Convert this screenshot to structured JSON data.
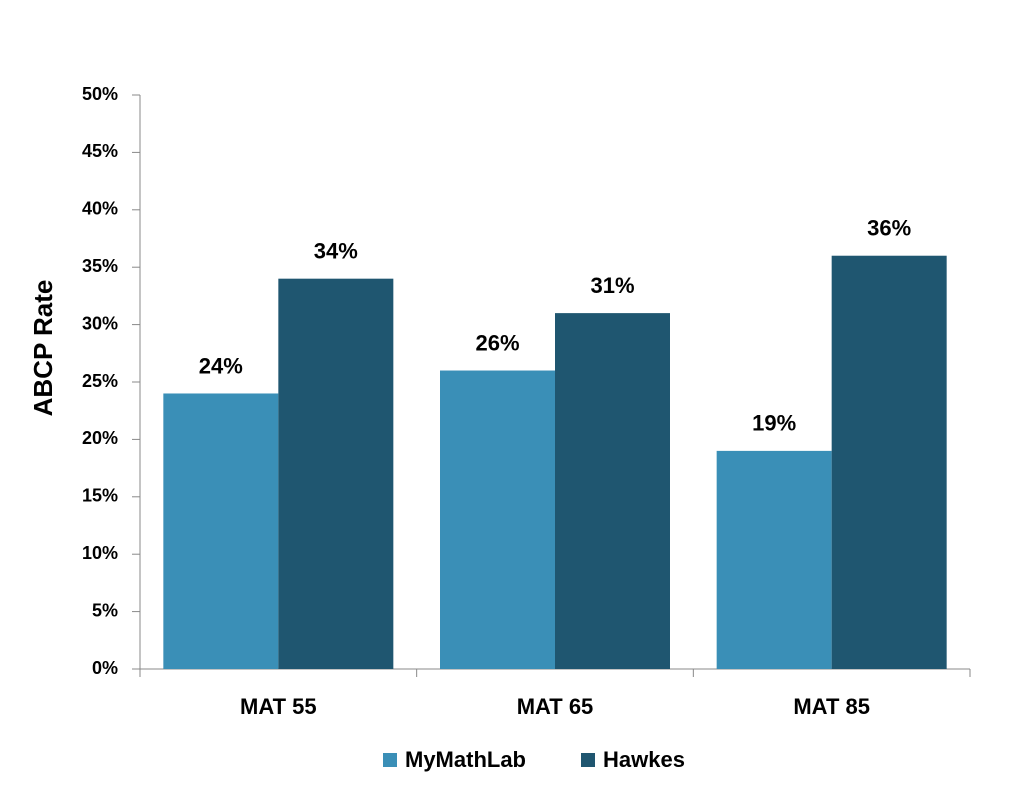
{
  "chart_data": {
    "type": "bar",
    "y_label": "ABCP Rate",
    "categories": [
      "MAT 55",
      "MAT 65",
      "MAT 85"
    ],
    "series": [
      {
        "name": "MyMathLab",
        "color": "#3a8fb7",
        "values": [
          24,
          26,
          19
        ],
        "value_labels": [
          "24%",
          "26%",
          "19%"
        ]
      },
      {
        "name": "Hawkes",
        "color": "#1f5670",
        "values": [
          34,
          31,
          36
        ],
        "value_labels": [
          "34%",
          "31%",
          "36%"
        ]
      }
    ],
    "ylim": [
      0,
      50
    ],
    "yticks": [
      {
        "value": 0,
        "label": "0%"
      },
      {
        "value": 5,
        "label": "5%"
      },
      {
        "value": 10,
        "label": "10%"
      },
      {
        "value": 15,
        "label": "15%"
      },
      {
        "value": 20,
        "label": "20%"
      },
      {
        "value": 25,
        "label": "25%"
      },
      {
        "value": 30,
        "label": "30%"
      },
      {
        "value": 35,
        "label": "35%"
      },
      {
        "value": 40,
        "label": "40%"
      },
      {
        "value": 45,
        "label": "45%"
      },
      {
        "value": 50,
        "label": "50%"
      }
    ],
    "grid": false,
    "legend": "bottom"
  }
}
